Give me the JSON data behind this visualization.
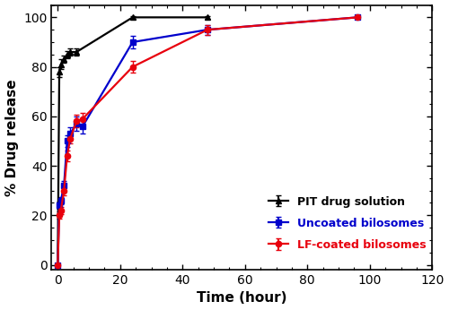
{
  "lf_coated": {
    "x": [
      0,
      0.5,
      1,
      2,
      3,
      4,
      6,
      8,
      24,
      48,
      96
    ],
    "y": [
      0,
      20,
      22,
      30,
      44,
      51,
      58,
      59,
      80,
      95,
      100
    ],
    "yerr": [
      0,
      1.5,
      1.5,
      2.0,
      2.0,
      2.0,
      2.5,
      2.5,
      2.5,
      2.0,
      0.5
    ],
    "color": "#e8000d",
    "label": "LF-coated bilosomes",
    "marker": "o"
  },
  "uncoated": {
    "x": [
      0,
      0.5,
      1,
      2,
      3,
      4,
      6,
      8,
      24,
      48,
      96
    ],
    "y": [
      0,
      24,
      26,
      32,
      50,
      53,
      57,
      56,
      90,
      95,
      100
    ],
    "yerr": [
      0,
      1.5,
      1.5,
      2.0,
      2.5,
      2.5,
      3.0,
      3.0,
      2.5,
      2.0,
      0.5
    ],
    "color": "#0000cc",
    "label": "Uncoated bilosomes",
    "marker": "s"
  },
  "pit": {
    "x": [
      0,
      0.5,
      1,
      2,
      3,
      4,
      6,
      24,
      48
    ],
    "y": [
      0,
      78,
      81,
      83,
      85,
      86,
      86,
      100,
      100
    ],
    "yerr": [
      0,
      2.0,
      2.0,
      1.5,
      1.5,
      1.5,
      1.5,
      0.5,
      0.5
    ],
    "color": "#000000",
    "label": "PIT drug solution",
    "marker": "^"
  },
  "xlabel": "Time (hour)",
  "ylabel": "% Drug release",
  "xlim": [
    -2,
    120
  ],
  "ylim": [
    -2,
    105
  ],
  "xticks": [
    0,
    20,
    40,
    60,
    80,
    100,
    120
  ],
  "yticks": [
    0,
    20,
    40,
    60,
    80,
    100
  ],
  "figsize": [
    5.0,
    3.46
  ],
  "dpi": 100
}
